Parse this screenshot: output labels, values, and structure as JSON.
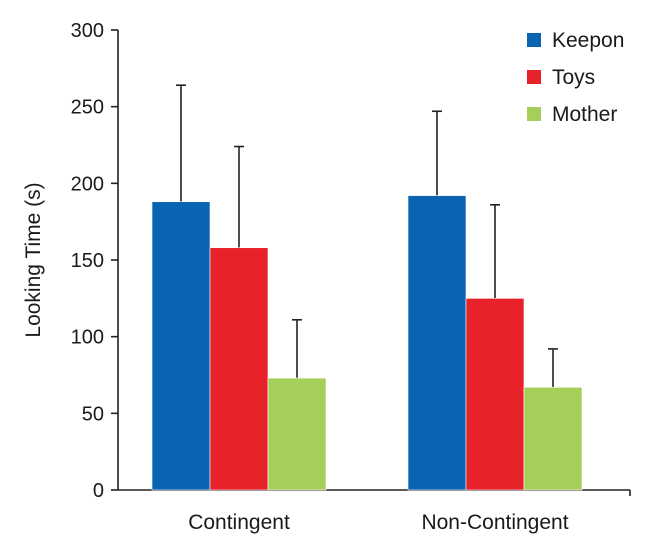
{
  "chart_data": {
    "type": "bar",
    "title": "",
    "xlabel": "",
    "ylabel": "Looking Time (s)",
    "ylim": [
      0,
      300
    ],
    "yticks": [
      0,
      50,
      100,
      150,
      200,
      250,
      300
    ],
    "grid": false,
    "legend_position": "top-right",
    "categories": [
      "Contingent",
      "Non-Contingent"
    ],
    "series": [
      {
        "name": "Keepon",
        "color": "#0a64b4",
        "values": [
          188,
          192
        ],
        "error_upper": [
          264,
          247
        ]
      },
      {
        "name": "Toys",
        "color": "#e8222a",
        "values": [
          158,
          125
        ],
        "error_upper": [
          224,
          186
        ]
      },
      {
        "name": "Mother",
        "color": "#a6cf5a",
        "values": [
          73,
          67
        ],
        "error_upper": [
          111,
          92
        ]
      }
    ]
  }
}
